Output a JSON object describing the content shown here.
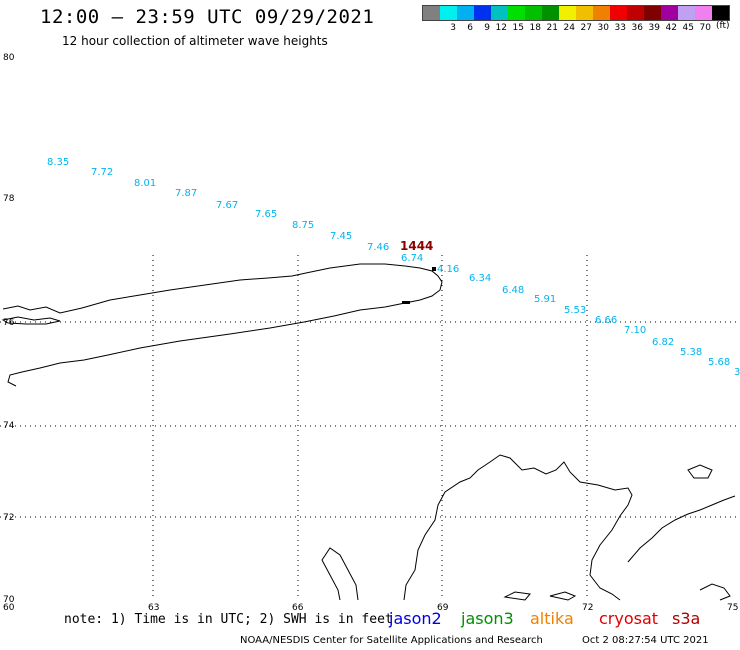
{
  "header": {
    "title": "12:00 — 23:59 UTC 09/29/2021",
    "subtitle": "12 hour collection of altimeter wave heights"
  },
  "scale": {
    "unit": "(ft)",
    "bins": [
      {
        "color": "#808080",
        "label": ""
      },
      {
        "color": "#00f0f0",
        "label": "3"
      },
      {
        "color": "#00b0f0",
        "label": "6"
      },
      {
        "color": "#0030f0",
        "label": "9"
      },
      {
        "color": "#00c0c0",
        "label": "12"
      },
      {
        "color": "#00e000",
        "label": "15"
      },
      {
        "color": "#00c000",
        "label": "18"
      },
      {
        "color": "#009000",
        "label": "21"
      },
      {
        "color": "#f0f000",
        "label": "24"
      },
      {
        "color": "#f0c000",
        "label": "27"
      },
      {
        "color": "#f08000",
        "label": "30"
      },
      {
        "color": "#f00000",
        "label": "33"
      },
      {
        "color": "#c00000",
        "label": "36"
      },
      {
        "color": "#800000",
        "label": "39"
      },
      {
        "color": "#a000a0",
        "label": "42"
      },
      {
        "color": "#c0a0f0",
        "label": "45"
      },
      {
        "color": "#f080f0",
        "label": "70"
      },
      {
        "color": "#000000",
        "label": ""
      }
    ]
  },
  "axes": {
    "lat_labels": [
      "80",
      "78",
      "76",
      "74",
      "72",
      "70"
    ],
    "lon_labels": [
      "60",
      "63",
      "66",
      "69",
      "72",
      "75"
    ]
  },
  "wave_labels": {
    "color": "#00b4f0",
    "values": [
      "8.35",
      "7.72",
      "8.01",
      "7.87",
      "7.67",
      "7.65",
      "8.75",
      "7.45",
      "7.46",
      "6.74",
      "4.16",
      "6.34",
      "6.48",
      "5.91",
      "5.53",
      "6.66",
      "7.10",
      "6.82",
      "5.38",
      "5.68",
      "3"
    ]
  },
  "time_label": {
    "text": "1444",
    "color": "#8b0000"
  },
  "footer": {
    "note": "note: 1) Time is in UTC; 2) SWH is in feet",
    "satellites": [
      {
        "name": "jason2",
        "color": "#0000e0"
      },
      {
        "name": "jason3",
        "color": "#009000"
      },
      {
        "name": "altika",
        "color": "#f08000"
      },
      {
        "name": "cryosat",
        "color": "#e00000"
      },
      {
        "name": "s3a",
        "color": "#b00000"
      }
    ],
    "credit": "NOAA/NESDIS Center for Satellite Applications and Research",
    "timestamp": "Oct  2 08:27:54 UTC 2021"
  }
}
